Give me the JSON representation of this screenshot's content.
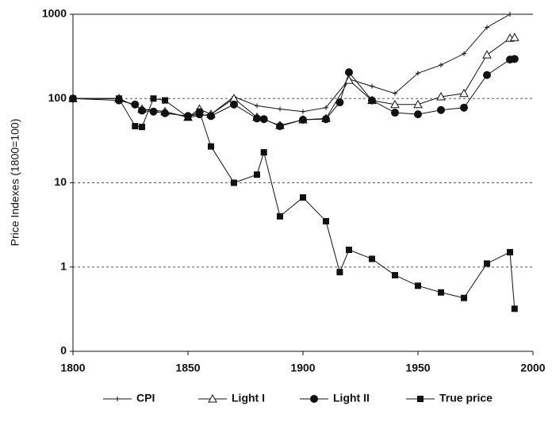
{
  "chart_data": {
    "type": "line",
    "y_label": "Price Indexes (1800=100)",
    "log_y": true,
    "grid": true,
    "xlim": [
      1800,
      2000
    ],
    "xticks": [
      1800,
      1850,
      1900,
      1950,
      2000
    ],
    "ylim": [
      0.1,
      1000
    ],
    "yticks": [
      {
        "value": 0.1,
        "label": "0"
      },
      1,
      10,
      100,
      1000
    ],
    "series": [
      {
        "name": "CPI",
        "color": "#111111",
        "marker": "plus",
        "x": [
          1800,
          1820,
          1830,
          1840,
          1850,
          1860,
          1870,
          1880,
          1890,
          1900,
          1910,
          1920,
          1930,
          1940,
          1950,
          1960,
          1970,
          1980,
          1990
        ],
        "values": [
          100,
          100,
          75,
          70,
          60,
          65,
          105,
          82,
          75,
          70,
          78,
          170,
          140,
          115,
          200,
          250,
          340,
          700,
          1000
        ]
      },
      {
        "name": "Light I",
        "color": "#111111",
        "marker": "triangle",
        "x": [
          1800,
          1820,
          1830,
          1840,
          1850,
          1855,
          1860,
          1870,
          1880,
          1890,
          1900,
          1910,
          1920,
          1930,
          1940,
          1950,
          1960,
          1970,
          1980,
          1990,
          1992
        ],
        "values": [
          100,
          100,
          75,
          70,
          60,
          75,
          65,
          100,
          60,
          48,
          56,
          58,
          165,
          95,
          85,
          85,
          105,
          115,
          330,
          520,
          530
        ]
      },
      {
        "name": "Light II",
        "color": "#111111",
        "marker": "circle",
        "x": [
          1800,
          1820,
          1827,
          1830,
          1835,
          1840,
          1850,
          1855,
          1860,
          1870,
          1880,
          1883,
          1890,
          1900,
          1910,
          1916,
          1920,
          1930,
          1940,
          1950,
          1960,
          1970,
          1980,
          1990,
          1992
        ],
        "values": [
          100,
          95,
          85,
          72,
          70,
          67,
          62,
          65,
          62,
          85,
          58,
          57,
          47,
          56,
          57,
          90,
          205,
          95,
          68,
          65,
          73,
          78,
          190,
          290,
          295
        ]
      },
      {
        "name": "True price",
        "color": "#111111",
        "marker": "square",
        "x": [
          1800,
          1820,
          1827,
          1830,
          1835,
          1840,
          1850,
          1855,
          1860,
          1870,
          1880,
          1883,
          1890,
          1900,
          1910,
          1916,
          1920,
          1930,
          1940,
          1950,
          1960,
          1970,
          1980,
          1990,
          1992
        ],
        "values": [
          100,
          100,
          47,
          46,
          100,
          95,
          60,
          70,
          27,
          10,
          12.5,
          23,
          4,
          6.7,
          3.5,
          0.87,
          1.6,
          1.25,
          0.8,
          0.6,
          0.5,
          0.43,
          1.1,
          1.5,
          0.32
        ]
      }
    ]
  }
}
